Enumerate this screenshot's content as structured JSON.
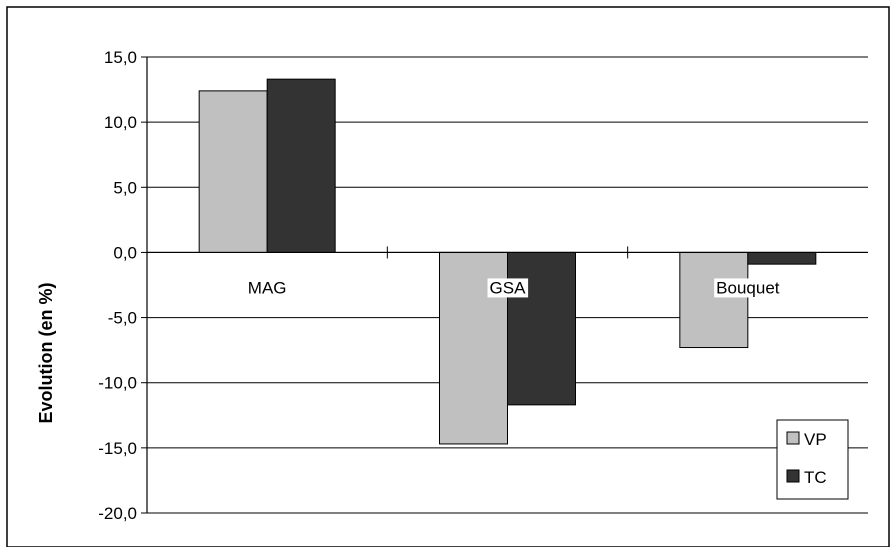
{
  "chart_data": {
    "type": "bar",
    "title": "",
    "xlabel": "",
    "ylabel": "Evolution (en %)",
    "ylim": [
      -20,
      15
    ],
    "yticks": [
      15,
      10,
      5,
      0,
      -5,
      -10,
      -15,
      -20
    ],
    "ytick_labels": [
      "15,0",
      "10,0",
      "5,0",
      "0,0",
      "-5,0",
      "-10,0",
      "-15,0",
      "-20,0"
    ],
    "grid": true,
    "legend_position": "bottom-right",
    "categories": [
      "MAG",
      "GSA",
      "Bouquet"
    ],
    "series": [
      {
        "name": "VP",
        "values": [
          12.4,
          -14.7,
          -7.3
        ],
        "color": "#c0c0c0"
      },
      {
        "name": "TC",
        "values": [
          13.3,
          -11.7,
          -0.9
        ],
        "color": "#333333"
      }
    ]
  }
}
